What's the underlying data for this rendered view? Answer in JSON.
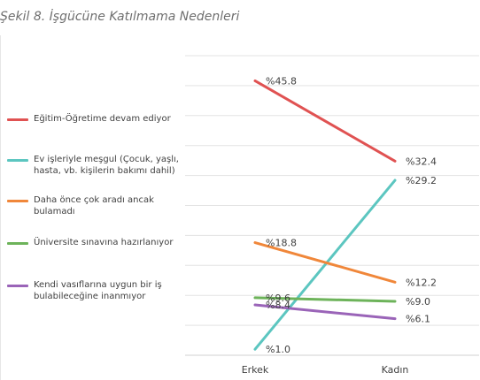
{
  "figure_title": "Şekil 8. İşgücüne Katılmama Nedenleri",
  "chart_data": {
    "type": "line",
    "categories": [
      "Erkek",
      "Kadın"
    ],
    "ylim": [
      0,
      50
    ],
    "grid": true,
    "legend_position": "left",
    "series": [
      {
        "name": "Eğitim-Öğretime devam ediyor",
        "values": [
          45.8,
          32.4
        ],
        "labels": [
          "%45.8",
          "%32.4"
        ],
        "color": "#e05252"
      },
      {
        "name": "Ev işleriyle meşgul (Çocuk, yaşlı, hasta, vb. kişilerin bakımı dahil)",
        "values": [
          1.0,
          29.2
        ],
        "labels": [
          "%1.0",
          "%29.2"
        ],
        "color": "#5cc6c0"
      },
      {
        "name": "Daha önce çok aradı ancak bulamadı",
        "values": [
          18.8,
          12.2
        ],
        "labels": [
          "%18.8",
          "%12.2"
        ],
        "color": "#f0873a"
      },
      {
        "name": "Üniversite sınavına hazırlanıyor",
        "values": [
          9.6,
          9.0
        ],
        "labels": [
          "%9.6",
          "%9.0"
        ],
        "color": "#6db35a"
      },
      {
        "name": "Kendi vasıflarına uygun bir iş bulabileceğine inanmıyor",
        "values": [
          8.4,
          6.1
        ],
        "labels": [
          "%8.4",
          "%6.1"
        ],
        "color": "#9a64b8"
      }
    ]
  }
}
